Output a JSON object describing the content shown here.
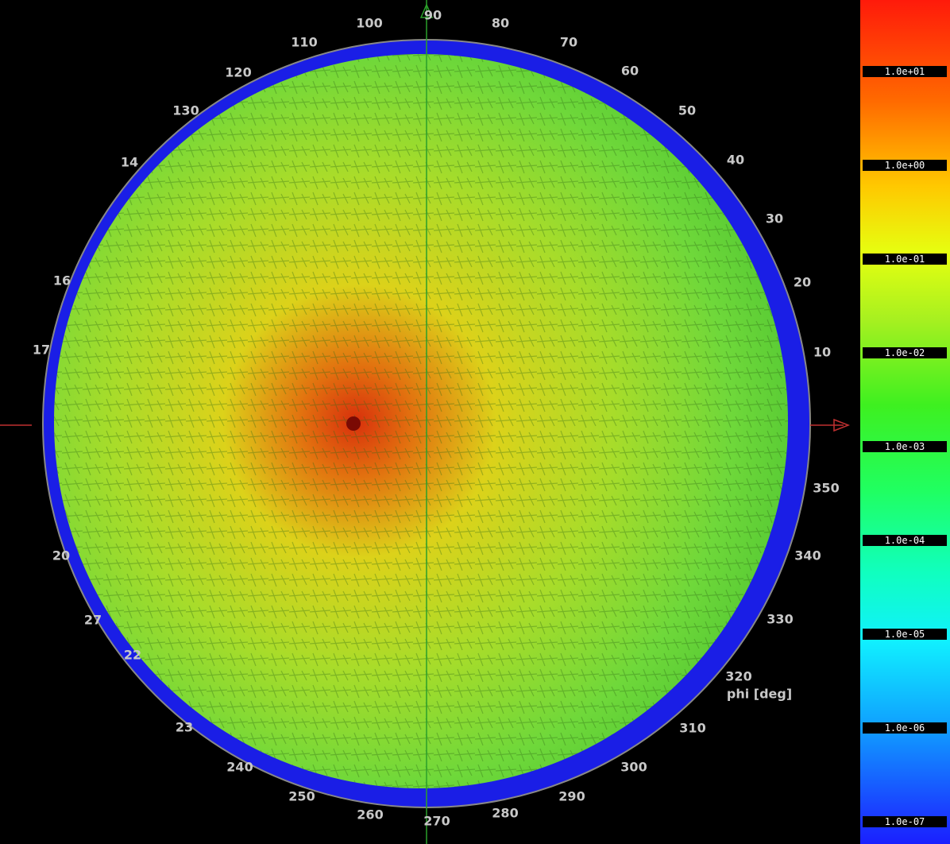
{
  "phi_labels": [
    "100",
    "90",
    "80",
    "70",
    "60",
    "50",
    "40",
    "30",
    "20",
    "10",
    "350",
    "340",
    "330",
    "320",
    "310",
    "300",
    "290",
    "280",
    "270",
    "260",
    "250",
    "240",
    "23",
    "22",
    "27",
    "20",
    "17",
    "16",
    "14",
    "130",
    "120",
    "110"
  ],
  "axis_label": "phi [deg]",
  "colorbar": {
    "labels": [
      "1.0e+01",
      "1.0e+00",
      "1.0e-01",
      "1.0e-02",
      "1.0e-03",
      "1.0e-04",
      "1.0e-05",
      "1.0e-06",
      "1.0e-07"
    ]
  }
}
